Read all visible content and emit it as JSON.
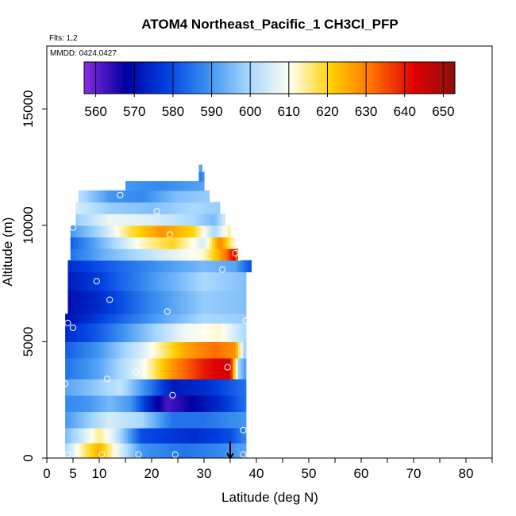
{
  "chart_data": {
    "type": "heatmap",
    "title": "ATOM4 Northeast_Pacific_1 CH3Cl_PFP",
    "flights_note": "Flts: 1,2",
    "date_note": "MMDD: 0424,0427",
    "xlabel": "Latitude (deg N)",
    "ylabel": "Altitude (m)",
    "xlim": [
      0,
      85
    ],
    "ylim": [
      0,
      17700
    ],
    "x_ticks": [
      {
        "value": 0,
        "label": "0"
      },
      {
        "value": 5,
        "label": "5"
      },
      {
        "value": 10,
        "label": "10"
      },
      {
        "value": 20,
        "label": "20"
      },
      {
        "value": 30,
        "label": "30"
      },
      {
        "value": 40,
        "label": "40"
      },
      {
        "value": 50,
        "label": "50"
      },
      {
        "value": 60,
        "label": "60"
      },
      {
        "value": 70,
        "label": "70"
      },
      {
        "value": 80,
        "label": "80"
      }
    ],
    "x_minor_ticks": [
      15,
      25,
      35,
      45,
      55,
      65,
      75,
      85
    ],
    "y_ticks": [
      {
        "value": 0,
        "label": "0"
      },
      {
        "value": 5000,
        "label": "5000"
      },
      {
        "value": 10000,
        "label": "10000"
      },
      {
        "value": 15000,
        "label": "15000"
      }
    ],
    "colorbar": {
      "min": 557,
      "max": 653,
      "ticks": [
        "560",
        "570",
        "580",
        "590",
        "600",
        "610",
        "620",
        "630",
        "640",
        "650"
      ],
      "colors": [
        "#8a2be2",
        "#0000a0",
        "#0040e0",
        "#3a90f0",
        "#a8d8ff",
        "#fffff0",
        "#ffd000",
        "#ff7000",
        "#e00000",
        "#8c1010"
      ]
    },
    "arrow_latitude": 35,
    "rows": [
      {
        "y0": 0,
        "y1": 650,
        "x0": 3.5,
        "x1": 38,
        "stops": [
          [
            3.5,
            600
          ],
          [
            7,
            615
          ],
          [
            10,
            625
          ],
          [
            13,
            610
          ],
          [
            18,
            590
          ],
          [
            26,
            585
          ],
          [
            33,
            588
          ],
          [
            38,
            592
          ]
        ]
      },
      {
        "y0": 650,
        "y1": 1300,
        "x0": 3.5,
        "x1": 38,
        "stops": [
          [
            3.5,
            595
          ],
          [
            7,
            605
          ],
          [
            10,
            615
          ],
          [
            13,
            605
          ],
          [
            18,
            580
          ],
          [
            28,
            575
          ],
          [
            35,
            580
          ],
          [
            38,
            588
          ]
        ]
      },
      {
        "y0": 1300,
        "y1": 2000,
        "x0": 3.5,
        "x1": 38,
        "stops": [
          [
            3.5,
            590
          ],
          [
            8,
            598
          ],
          [
            12,
            605
          ],
          [
            18,
            600
          ],
          [
            24,
            585
          ],
          [
            30,
            585
          ],
          [
            38,
            590
          ]
        ]
      },
      {
        "y0": 2000,
        "y1": 2700,
        "x0": 3.5,
        "x1": 38,
        "stops": [
          [
            3.5,
            588
          ],
          [
            8,
            590
          ],
          [
            12,
            595
          ],
          [
            16,
            590
          ],
          [
            20,
            572
          ],
          [
            23,
            562
          ],
          [
            28,
            568
          ],
          [
            33,
            575
          ],
          [
            38,
            585
          ]
        ]
      },
      {
        "y0": 2700,
        "y1": 3400,
        "x0": 3.5,
        "x1": 38,
        "stops": [
          [
            3.5,
            592
          ],
          [
            8,
            596
          ],
          [
            14,
            603
          ],
          [
            20,
            585
          ],
          [
            24,
            572
          ],
          [
            30,
            575
          ],
          [
            38,
            585
          ]
        ]
      },
      {
        "y0": 3400,
        "y1": 4300,
        "x0": 3.5,
        "x1": 38,
        "stops": [
          [
            3.5,
            585
          ],
          [
            10,
            592
          ],
          [
            18,
            608
          ],
          [
            24,
            628
          ],
          [
            30,
            640
          ],
          [
            35,
            645
          ],
          [
            36.5,
            600
          ],
          [
            38,
            590
          ]
        ]
      },
      {
        "y0": 4300,
        "y1": 5000,
        "x0": 3.5,
        "x1": 38,
        "stops": [
          [
            3.5,
            582
          ],
          [
            10,
            590
          ],
          [
            18,
            605
          ],
          [
            26,
            625
          ],
          [
            32,
            632
          ],
          [
            36,
            628
          ],
          [
            38,
            595
          ]
        ]
      },
      {
        "y0": 5000,
        "y1": 5800,
        "x0": 3.5,
        "x1": 38,
        "stops": [
          [
            3.5,
            575
          ],
          [
            10,
            582
          ],
          [
            18,
            595
          ],
          [
            26,
            608
          ],
          [
            33,
            612
          ],
          [
            38,
            600
          ]
        ]
      },
      {
        "y0": 5800,
        "y1": 6200,
        "x0": 3.5,
        "x1": 38,
        "stops": [
          [
            3.5,
            570
          ],
          [
            10,
            578
          ],
          [
            20,
            590
          ],
          [
            30,
            600
          ],
          [
            38,
            598
          ]
        ]
      },
      {
        "y0": 6200,
        "y1": 7200,
        "x0": 4,
        "x1": 38,
        "stops": [
          [
            4,
            570
          ],
          [
            10,
            575
          ],
          [
            20,
            588
          ],
          [
            30,
            598
          ],
          [
            38,
            596
          ]
        ]
      },
      {
        "y0": 7200,
        "y1": 8000,
        "x0": 4,
        "x1": 38,
        "stops": [
          [
            4,
            572
          ],
          [
            10,
            578
          ],
          [
            20,
            590
          ],
          [
            30,
            600
          ],
          [
            38,
            596
          ]
        ]
      },
      {
        "y0": 8000,
        "y1": 8500,
        "x0": 4,
        "x1": 39,
        "stops": [
          [
            4,
            575
          ],
          [
            12,
            582
          ],
          [
            22,
            590
          ],
          [
            30,
            595
          ],
          [
            36,
            592
          ],
          [
            39,
            580
          ]
        ]
      },
      {
        "y0": 8500,
        "y1": 9000,
        "x0": 4.5,
        "x1": 37,
        "stops": [
          [
            4.5,
            585
          ],
          [
            12,
            595
          ],
          [
            22,
            605
          ],
          [
            30,
            612
          ],
          [
            34,
            630
          ],
          [
            36,
            645
          ],
          [
            37,
            600
          ]
        ]
      },
      {
        "y0": 9000,
        "y1": 9500,
        "x0": 4.5,
        "x1": 36,
        "stops": [
          [
            4.5,
            582
          ],
          [
            12,
            598
          ],
          [
            18,
            612
          ],
          [
            24,
            620
          ],
          [
            30,
            605
          ],
          [
            33,
            630
          ],
          [
            36,
            610
          ]
        ]
      },
      {
        "y0": 9500,
        "y1": 10000,
        "x0": 4.5,
        "x1": 35,
        "stops": [
          [
            4.5,
            590
          ],
          [
            10,
            600
          ],
          [
            16,
            618
          ],
          [
            22,
            628
          ],
          [
            28,
            620
          ],
          [
            32,
            600
          ],
          [
            35,
            615
          ]
        ]
      },
      {
        "y0": 10000,
        "y1": 10500,
        "x0": 5.5,
        "x1": 34,
        "stops": [
          [
            5.5,
            598
          ],
          [
            12,
            608
          ],
          [
            20,
            606
          ],
          [
            28,
            600
          ],
          [
            32,
            595
          ],
          [
            34,
            605
          ]
        ]
      },
      {
        "y0": 10500,
        "y1": 11000,
        "x0": 5.5,
        "x1": 33,
        "stops": [
          [
            5.5,
            605
          ],
          [
            12,
            598
          ],
          [
            20,
            596
          ],
          [
            28,
            600
          ],
          [
            33,
            598
          ]
        ]
      },
      {
        "y0": 11000,
        "y1": 11500,
        "x0": 6,
        "x1": 31,
        "stops": [
          [
            6,
            602
          ],
          [
            12,
            590
          ],
          [
            18,
            588
          ],
          [
            25,
            596
          ],
          [
            31,
            598
          ]
        ]
      },
      {
        "y0": 11500,
        "y1": 11900,
        "x0": 15,
        "x1": 30,
        "stops": [
          [
            15,
            590
          ],
          [
            22,
            588
          ],
          [
            30,
            592
          ]
        ]
      },
      {
        "y0": 11900,
        "y1": 12300,
        "x0": 29,
        "x1": 30,
        "stops": [
          [
            29,
            585
          ],
          [
            30,
            590
          ]
        ]
      },
      {
        "y0": 12300,
        "y1": 12600,
        "x0": 29,
        "x1": 29.6,
        "stops": [
          [
            29,
            592
          ],
          [
            29.6,
            592
          ]
        ]
      }
    ],
    "points": [
      [
        4,
        150
      ],
      [
        10.5,
        150
      ],
      [
        17.5,
        150
      ],
      [
        24.5,
        150
      ],
      [
        37.5,
        150
      ],
      [
        37.5,
        1200
      ],
      [
        24,
        2700
      ],
      [
        3.5,
        3200
      ],
      [
        11.5,
        3400
      ],
      [
        17,
        3700
      ],
      [
        34.5,
        3900
      ],
      [
        4,
        5800
      ],
      [
        5,
        5600
      ],
      [
        38,
        5900
      ],
      [
        23,
        6300
      ],
      [
        12,
        6800
      ],
      [
        9.5,
        7600
      ],
      [
        33.5,
        8100
      ],
      [
        36,
        8800
      ],
      [
        23.5,
        9600
      ],
      [
        5,
        9900
      ],
      [
        21,
        10600
      ],
      [
        14,
        11300
      ]
    ]
  }
}
